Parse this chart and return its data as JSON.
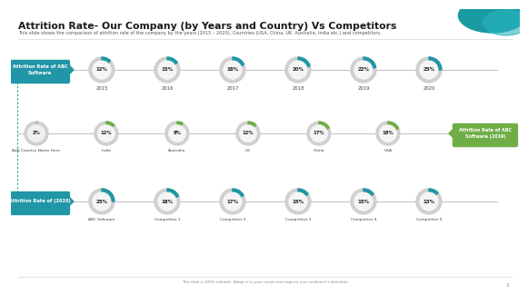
{
  "title": "Attrition Rate- Our Company (by Years and Country) Vs Competitors",
  "subtitle": "This slide shows the comparison of attrition rate of the company by the years (2015 – 2020), Countries (USA, China, UK, Australia, India etc.) and competitors.",
  "bg_color": "#ffffff",
  "teal_color": "#2196a6",
  "green_color": "#70ad47",
  "row1_label": "Attrition Rate of ABC\nSoftware",
  "row1_years": [
    "2015",
    "2016",
    "2017",
    "2018",
    "2019",
    "2020"
  ],
  "row1_values": [
    "12%",
    "15%",
    "18%",
    "20%",
    "22%",
    "25%"
  ],
  "row1_percents": [
    12,
    15,
    18,
    20,
    22,
    25
  ],
  "row2_label": "Attrition Rate of ABC\nSoftware (2019)",
  "row2_countries": [
    "Add Country Name Here",
    "India",
    "Australia",
    "UK",
    "China",
    "USA"
  ],
  "row2_values": [
    "2%",
    "12%",
    "8%",
    "12%",
    "17%",
    "18%"
  ],
  "row2_percents": [
    2,
    12,
    8,
    12,
    17,
    18
  ],
  "row3_label": "Attrition Rate of (2020)",
  "row3_competitors": [
    "ABC Software",
    "Competitor 1",
    "Competitor 2",
    "Competitor 3",
    "Competitor 4",
    "Competitor 5"
  ],
  "row3_values": [
    "25%",
    "18%",
    "17%",
    "15%",
    "15%",
    "13%"
  ],
  "row3_percents": [
    25,
    18,
    17,
    15,
    15,
    13
  ],
  "footer": "This slide is 100% editable. Adapt it to your needs and capture your audience’s attention."
}
